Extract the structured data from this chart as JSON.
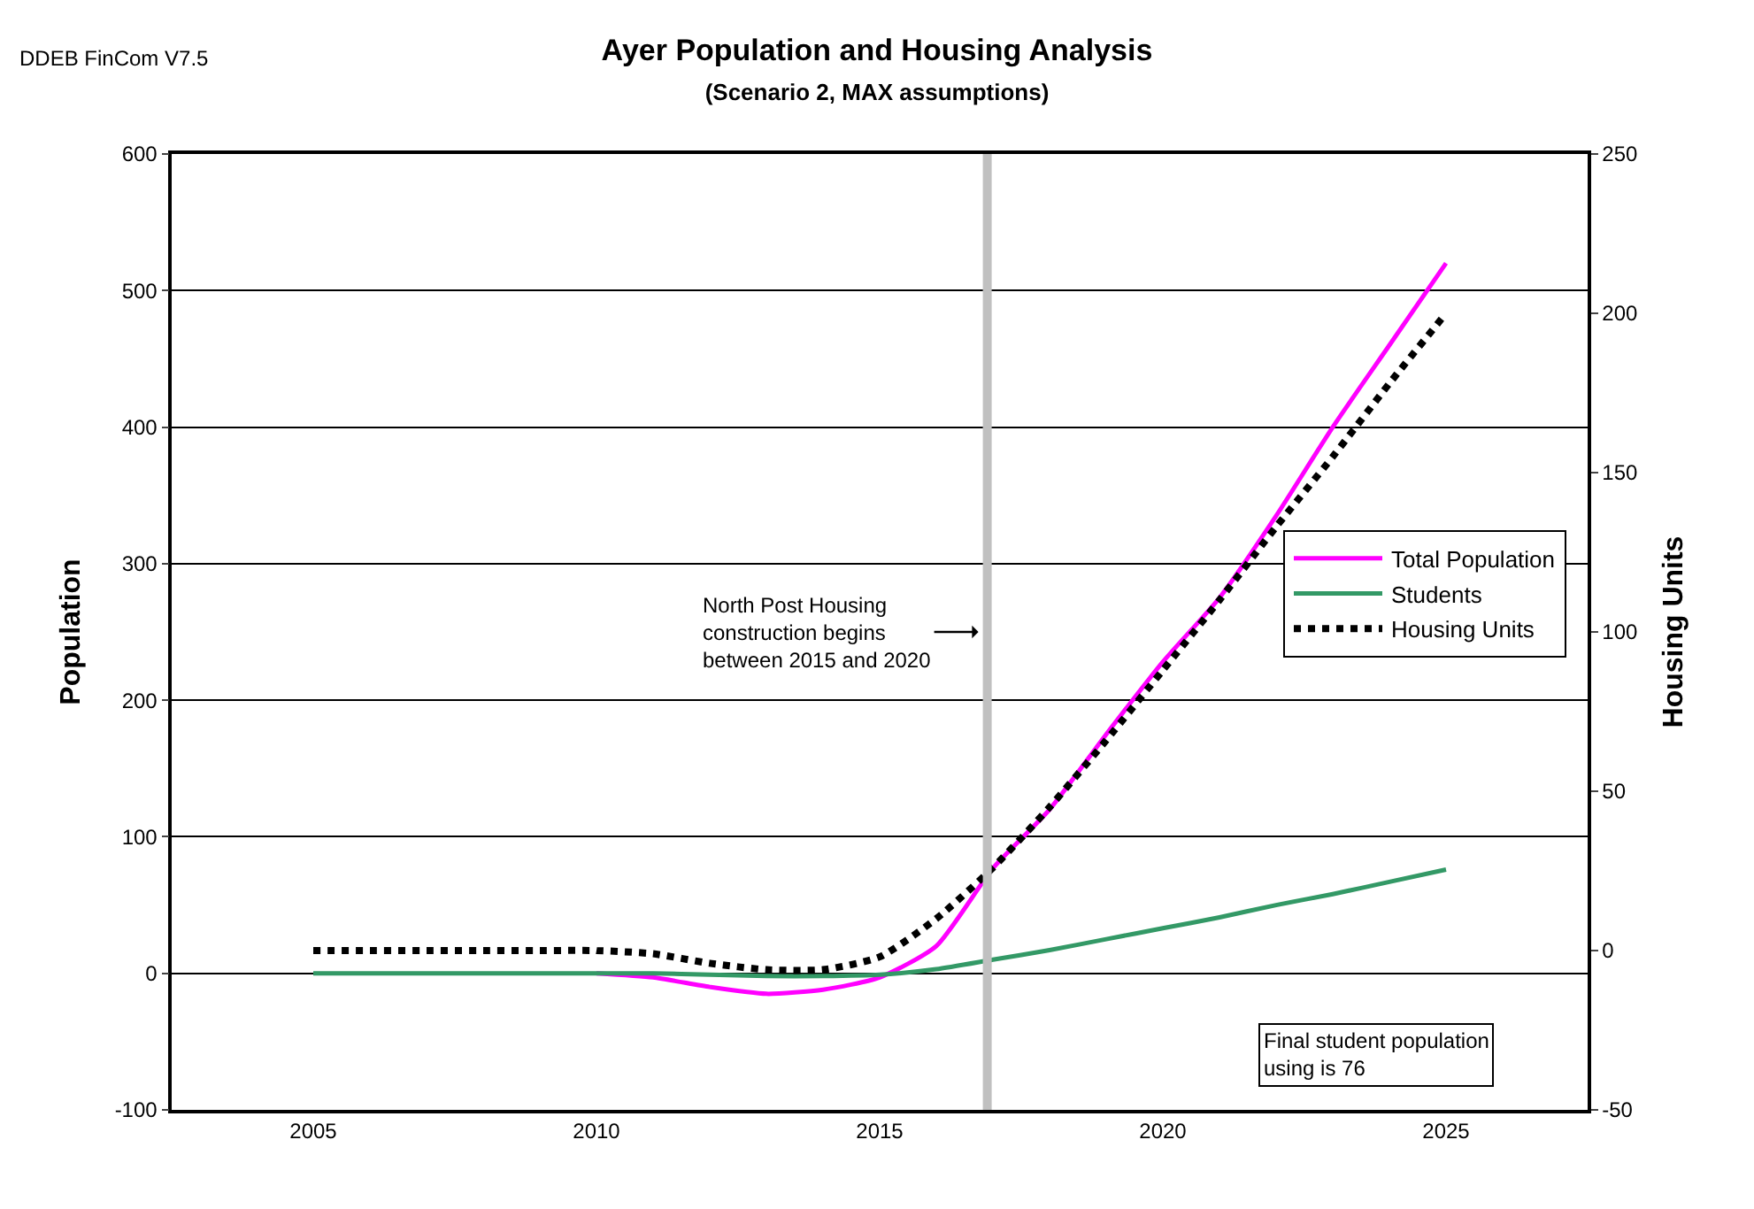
{
  "chart_data": {
    "type": "line",
    "title": "Ayer Population and Housing Analysis",
    "subtitle": "(Scenario 2, MAX assumptions)",
    "ylabel": "Population",
    "y2label": "Housing Units",
    "x": [
      2005,
      2006,
      2007,
      2008,
      2009,
      2010,
      2011,
      2012,
      2013,
      2014,
      2015,
      2016,
      2017,
      2018,
      2019,
      2020,
      2021,
      2022,
      2023,
      2024,
      2025
    ],
    "series": [
      {
        "name": "Total Population",
        "color": "#ff00ff",
        "line_style": "solid",
        "values": [
          null,
          null,
          null,
          null,
          null,
          0,
          -3,
          -10,
          -15,
          -12,
          -3,
          20,
          77,
          120,
          175,
          228,
          275,
          335,
          400,
          460,
          520
        ]
      },
      {
        "name": "Students",
        "color": "#339966",
        "line_style": "solid",
        "values": [
          0,
          0,
          0,
          0,
          0,
          0,
          0,
          -1,
          -2,
          -2,
          -1,
          3,
          10,
          17,
          25,
          33,
          41,
          50,
          58,
          67,
          76
        ]
      },
      {
        "name": "Housing Units",
        "color": "#000000",
        "line_style": "dotted",
        "axis": "y2",
        "values": [
          0,
          0,
          0,
          0,
          0,
          0,
          -1,
          -4,
          -6,
          -6,
          -2,
          10,
          26,
          45,
          66,
          88,
          110,
          133,
          155,
          178,
          200
        ]
      }
    ],
    "xlim": [
      2002.5,
      2027.5
    ],
    "xticks": [
      2005,
      2010,
      2015,
      2020,
      2025
    ],
    "ylim": [
      -100,
      600
    ],
    "yticks": [
      -100,
      0,
      100,
      200,
      300,
      400,
      500,
      600
    ],
    "y2lim": [
      -50,
      250
    ],
    "y2ticks": [
      -50,
      0,
      50,
      100,
      150,
      200,
      250
    ],
    "grid": "y",
    "legend": "right",
    "marker": "none",
    "ref_lines": [
      {
        "axis": "x",
        "value": 2016.9,
        "color": "#c0c0c0",
        "line_style": "solid"
      }
    ],
    "annotations": [
      {
        "text": "North Post Housing\nconstruction begins\nbetween 2015 and 2020",
        "x": 2016.9,
        "y": 250
      },
      "Final student population\nusing is 76",
      "DDEB FinCom V7.5"
    ]
  }
}
